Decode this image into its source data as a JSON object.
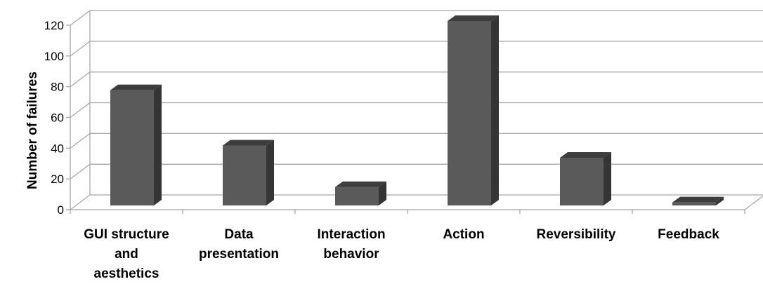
{
  "chart_data": {
    "type": "bar",
    "style": "3d-column",
    "ylabel": "Number of failures",
    "xlabel": "",
    "ylim": [
      0,
      120
    ],
    "yticks": [
      0,
      20,
      40,
      60,
      80,
      100,
      120
    ],
    "grid": true,
    "categories": [
      [
        "GUI structure",
        "and",
        "aesthetics"
      ],
      [
        "Data",
        "presentation"
      ],
      [
        "Interaction",
        "behavior"
      ],
      [
        "Action"
      ],
      [
        "Reversibility"
      ],
      [
        "Feedback"
      ]
    ],
    "values": [
      75,
      39,
      12,
      120,
      31,
      2
    ],
    "colors": {
      "front": "#5a5a5a",
      "side": "#353535",
      "top": "#3d3d3d",
      "grid": "#a8a8a8"
    }
  }
}
